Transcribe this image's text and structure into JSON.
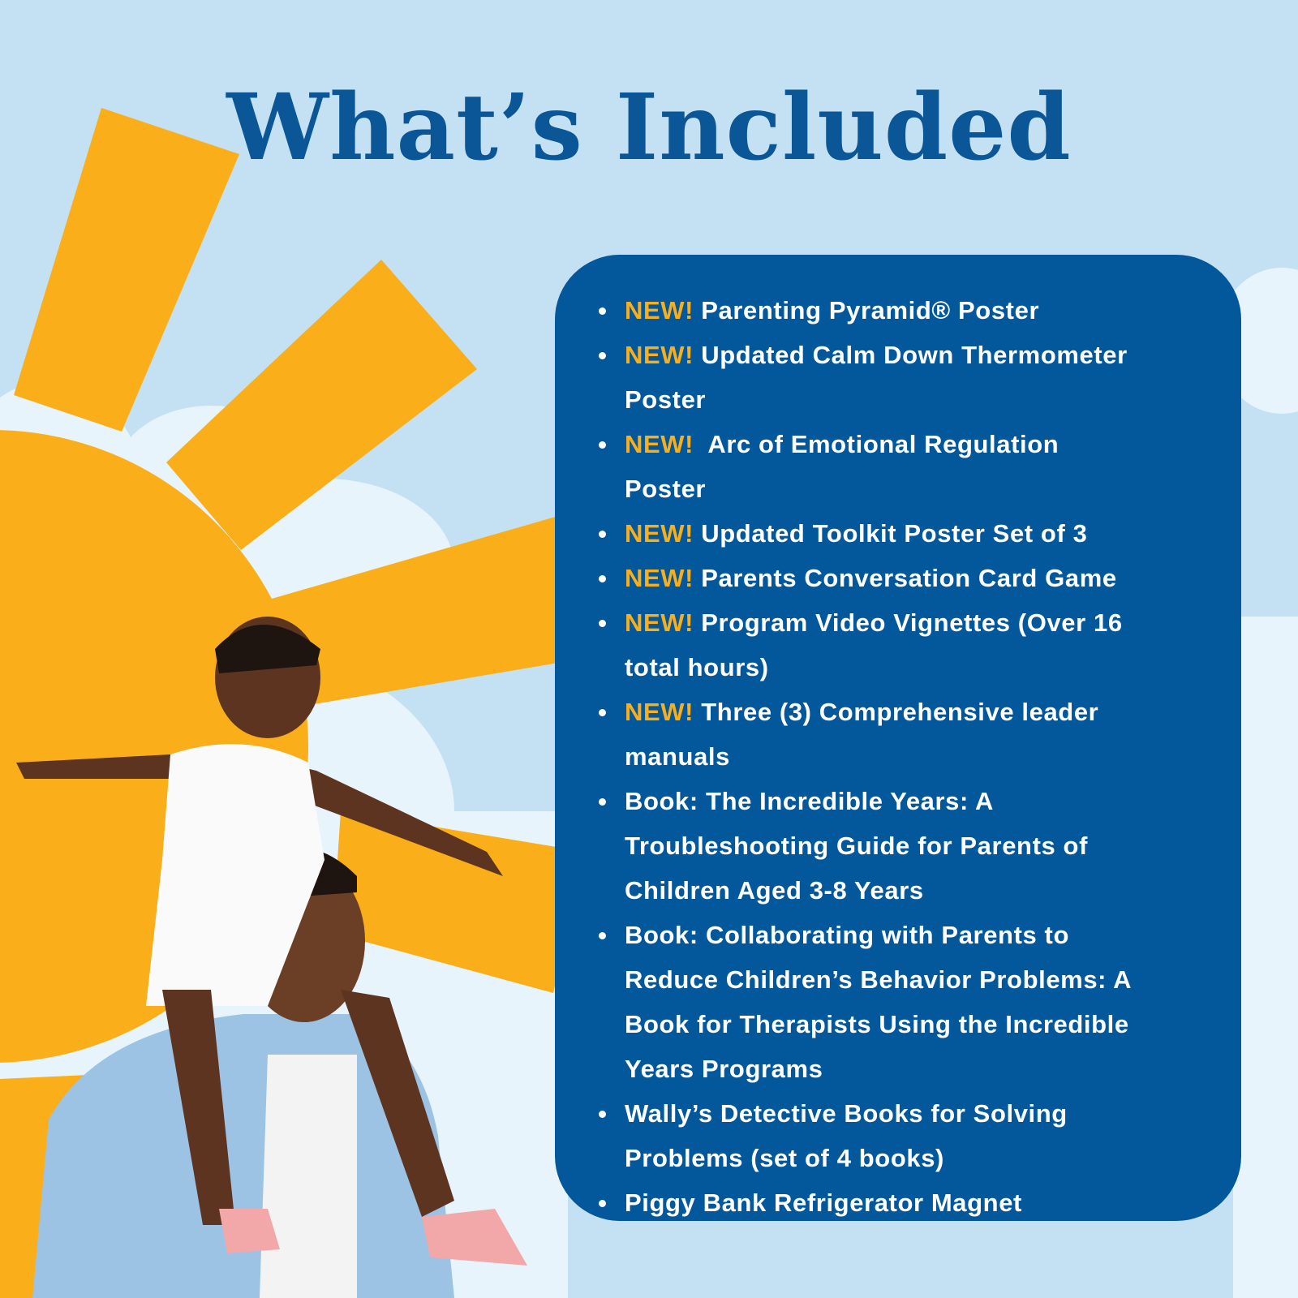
{
  "title": "What’s Included",
  "colors": {
    "background": "#c3e1f3",
    "title": "#0a5696",
    "panel": "#02589a",
    "accent": "#f9ae1a",
    "text": "#ffffff"
  },
  "items": [
    {
      "new": "NEW!",
      "lines": [
        "Parenting Pyramid® Poster"
      ]
    },
    {
      "new": "NEW!",
      "lines": [
        "Updated Calm Down Thermometer",
        "Poster"
      ]
    },
    {
      "new": "NEW!",
      "lines": [
        " Arc of Emotional Regulation",
        "Poster"
      ]
    },
    {
      "new": "NEW!",
      "lines": [
        "Updated Toolkit Poster Set of 3"
      ]
    },
    {
      "new": "NEW!",
      "lines": [
        "Parents Conversation Card Game"
      ]
    },
    {
      "new": "NEW!",
      "lines": [
        "Program Video Vignettes (Over 16",
        "total hours)"
      ]
    },
    {
      "new": "NEW!",
      "lines": [
        "Three (3) Comprehensive leader",
        "manuals"
      ]
    },
    {
      "new": "",
      "lines": [
        "Book: The Incredible Years: A",
        "Troubleshooting Guide for Parents of",
        "Children Aged 3-8 Years"
      ]
    },
    {
      "new": "",
      "lines": [
        "Book: Collaborating with Parents to",
        "Reduce Children’s Behavior Problems: A",
        "Book for Therapists Using the Incredible",
        "Years Programs"
      ]
    },
    {
      "new": "",
      "lines": [
        "Wally’s Detective Books for Solving",
        "Problems (set of 4 books)"
      ]
    },
    {
      "new": "",
      "lines": [
        "Piggy Bank Refrigerator Magnet"
      ]
    }
  ]
}
